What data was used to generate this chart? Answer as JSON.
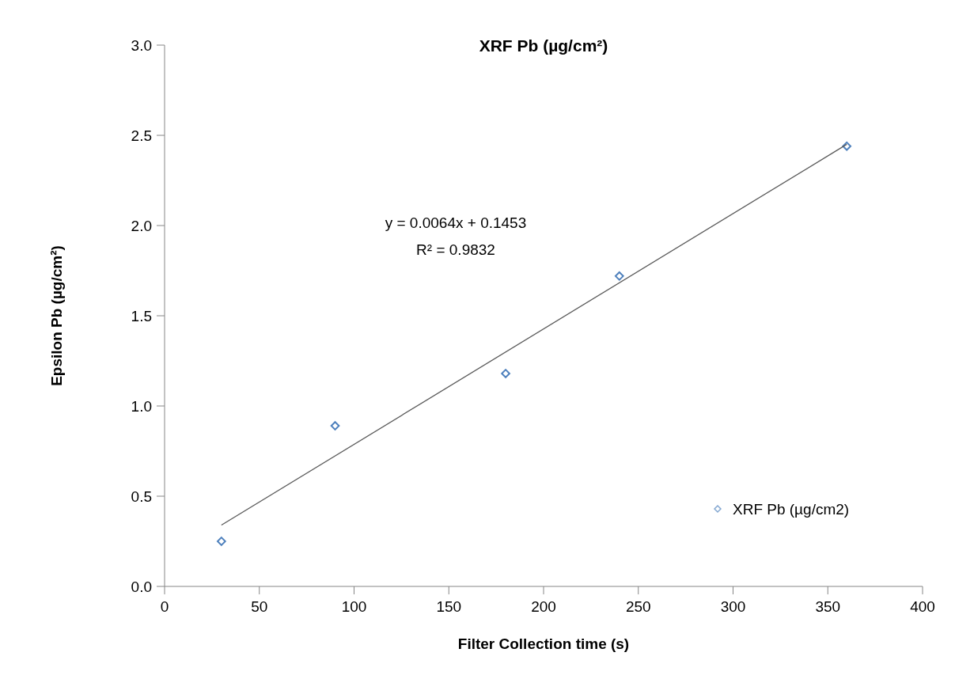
{
  "chart_data": {
    "type": "scatter",
    "title": "XRF Pb (µg/cm²)",
    "xlabel": "Filter Collection time (s)",
    "ylabel": "Epsilon Pb (µg/cm²)",
    "annotations": [
      "y = 0.0064x + 0.1453",
      "R² = 0.9832"
    ],
    "xlim": [
      0,
      400
    ],
    "xticks": [
      0,
      50,
      100,
      150,
      200,
      250,
      300,
      350,
      400
    ],
    "ylim": [
      0,
      3
    ],
    "yticks": [
      {
        "value": 0,
        "label": "0.0"
      },
      {
        "value": 0.5,
        "label": "0.5"
      },
      {
        "value": 1,
        "label": "1.0"
      },
      {
        "value": 1.5,
        "label": "1.5"
      },
      {
        "value": 2,
        "label": "2.0"
      },
      {
        "value": 2.5,
        "label": "2.5"
      },
      {
        "value": 3,
        "label": "3.0"
      }
    ],
    "grid": false,
    "legend": "bottom right",
    "series": [
      {
        "name": "XRF Pb (µg/cm2)",
        "marker": "diamond",
        "color": "#4f81bd",
        "x": [
          30,
          90,
          180,
          240,
          360
        ],
        "values": [
          0.25,
          0.89,
          1.18,
          1.72,
          2.44
        ]
      },
      {
        "type": "line",
        "color": "#595959",
        "x": [
          30,
          360
        ],
        "values": [
          0.34,
          2.45
        ]
      }
    ]
  }
}
